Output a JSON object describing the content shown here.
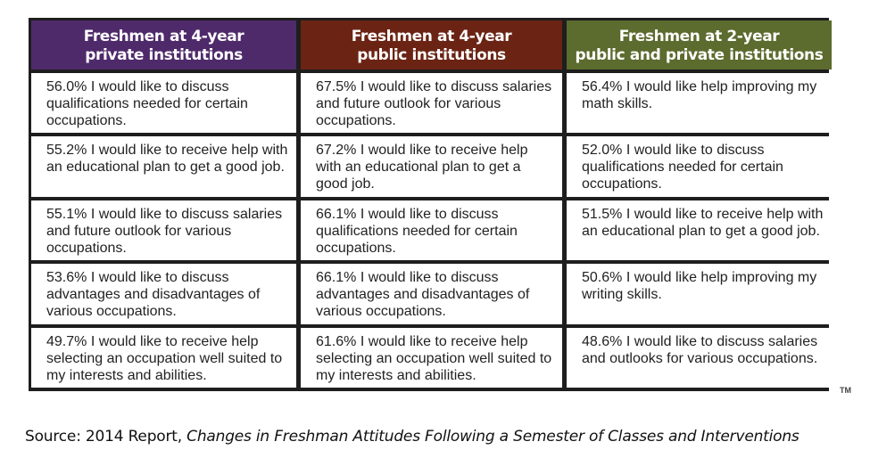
{
  "columns": [
    {
      "header_line1": "Freshmen at 4-year",
      "header_line2": "private institutions",
      "header_color": "#4f2a6b",
      "rows": [
        "56.0% I would like to discuss qualifications needed for certain occupations.",
        "55.2% I would like to receive help with an educational plan to get a good job.",
        "55.1% I would like to discuss salaries and future outlook for various occupations.",
        "53.6% I would like to discuss advantages and disadvantages of various occupations.",
        "49.7% I would like to receive help selecting an occupation well suited to my interests and abilities."
      ]
    },
    {
      "header_line1": "Freshmen at 4-year",
      "header_line2": "public institutions",
      "header_color": "#6b2414",
      "rows": [
        "67.5% I would like to discuss salaries and future outlook for various occupations.",
        "67.2% I would like to receive help with an educational plan to get a good job.",
        "66.1% I would like to discuss qualifications needed for certain occupations.",
        "66.1% I would like to discuss advantages and disadvantages of various occupations.",
        "61.6% I would like to receive help selecting an occupation well suited to my interests and abilities."
      ]
    },
    {
      "header_line1": "Freshmen at 2-year",
      "header_line2": "public and private institutions",
      "header_color": "#5c6b2e",
      "rows": [
        "56.4% I would like help improving my math skills.",
        "52.0% I would like to discuss qualifications needed for certain occupations.",
        "51.5% I would like to receive help with an educational plan to get a good job.",
        "50.6% I would like help improving my writing skills.",
        "48.6% I would like to discuss salaries and outlooks for various occupations."
      ]
    }
  ],
  "trademark": "TM",
  "source": {
    "prefix": "Source: 2014 Report, ",
    "title": "Changes in Freshman Attitudes Following a Semester of Classes and Interventions"
  }
}
